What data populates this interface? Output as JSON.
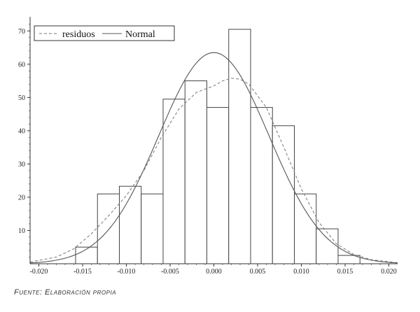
{
  "chart_data": {
    "type": "bar",
    "bins": [
      {
        "x0": -0.0158,
        "x1": -0.0133,
        "value": 5
      },
      {
        "x0": -0.0133,
        "x1": -0.0108,
        "value": 21
      },
      {
        "x0": -0.0108,
        "x1": -0.0083,
        "value": 23.3
      },
      {
        "x0": -0.0083,
        "x1": -0.0058,
        "value": 21
      },
      {
        "x0": -0.0058,
        "x1": -0.0033,
        "value": 49.5
      },
      {
        "x0": -0.0033,
        "x1": -0.0008,
        "value": 55
      },
      {
        "x0": -0.0008,
        "x1": 0.0017,
        "value": 47
      },
      {
        "x0": 0.0017,
        "x1": 0.0042,
        "value": 70.5
      },
      {
        "x0": 0.0042,
        "x1": 0.0067,
        "value": 47
      },
      {
        "x0": 0.0067,
        "x1": 0.0092,
        "value": 41.5
      },
      {
        "x0": 0.0092,
        "x1": 0.0117,
        "value": 21
      },
      {
        "x0": 0.0117,
        "x1": 0.0142,
        "value": 10.5
      },
      {
        "x0": 0.0142,
        "x1": 0.0167,
        "value": 2.5
      }
    ],
    "series": [
      {
        "name": "residuos",
        "style": "dashed",
        "x": [
          -0.021,
          -0.018,
          -0.016,
          -0.014,
          -0.012,
          -0.01,
          -0.008,
          -0.006,
          -0.004,
          -0.002,
          0.0,
          0.001,
          0.002,
          0.003,
          0.004,
          0.006,
          0.008,
          0.01,
          0.012,
          0.014,
          0.016,
          0.018,
          0.021
        ],
        "y": [
          0.5,
          2,
          4.5,
          9,
          14.5,
          20.5,
          28,
          38,
          46.5,
          51.5,
          53.5,
          55,
          55.8,
          55.5,
          54,
          47,
          35,
          22.5,
          12.5,
          6,
          2.8,
          1.2,
          0.3
        ]
      },
      {
        "name": "Normal",
        "style": "solid",
        "mean": 0,
        "sd": 0.0063,
        "peak": 63.5
      }
    ],
    "xlim": [
      -0.021,
      0.021
    ],
    "ylim": [
      0,
      73
    ],
    "x_ticks": [
      -0.02,
      -0.015,
      -0.01,
      -0.005,
      0.0,
      0.005,
      0.01,
      0.015,
      0.02
    ],
    "x_tick_labels": [
      "-0.020",
      "-0.015",
      "-0.010",
      "-0.005",
      "0.000",
      "0.005",
      "0.010",
      "0.015",
      "0.020"
    ],
    "y_ticks": [
      10,
      20,
      30,
      40,
      50,
      60,
      70
    ],
    "y_tick_labels": [
      "10",
      "20",
      "30",
      "40",
      "50",
      "60",
      "70"
    ],
    "legend_position": "top-left",
    "legend": [
      "residuos",
      "Normal"
    ],
    "xlabel": "",
    "ylabel": "",
    "title": "",
    "grid": false
  },
  "caption": "Fuente: Elaboración propia",
  "colors": {
    "bar_stroke": "#444444",
    "normal": "#555555",
    "residuos": "#777777",
    "axis": "#333333"
  }
}
